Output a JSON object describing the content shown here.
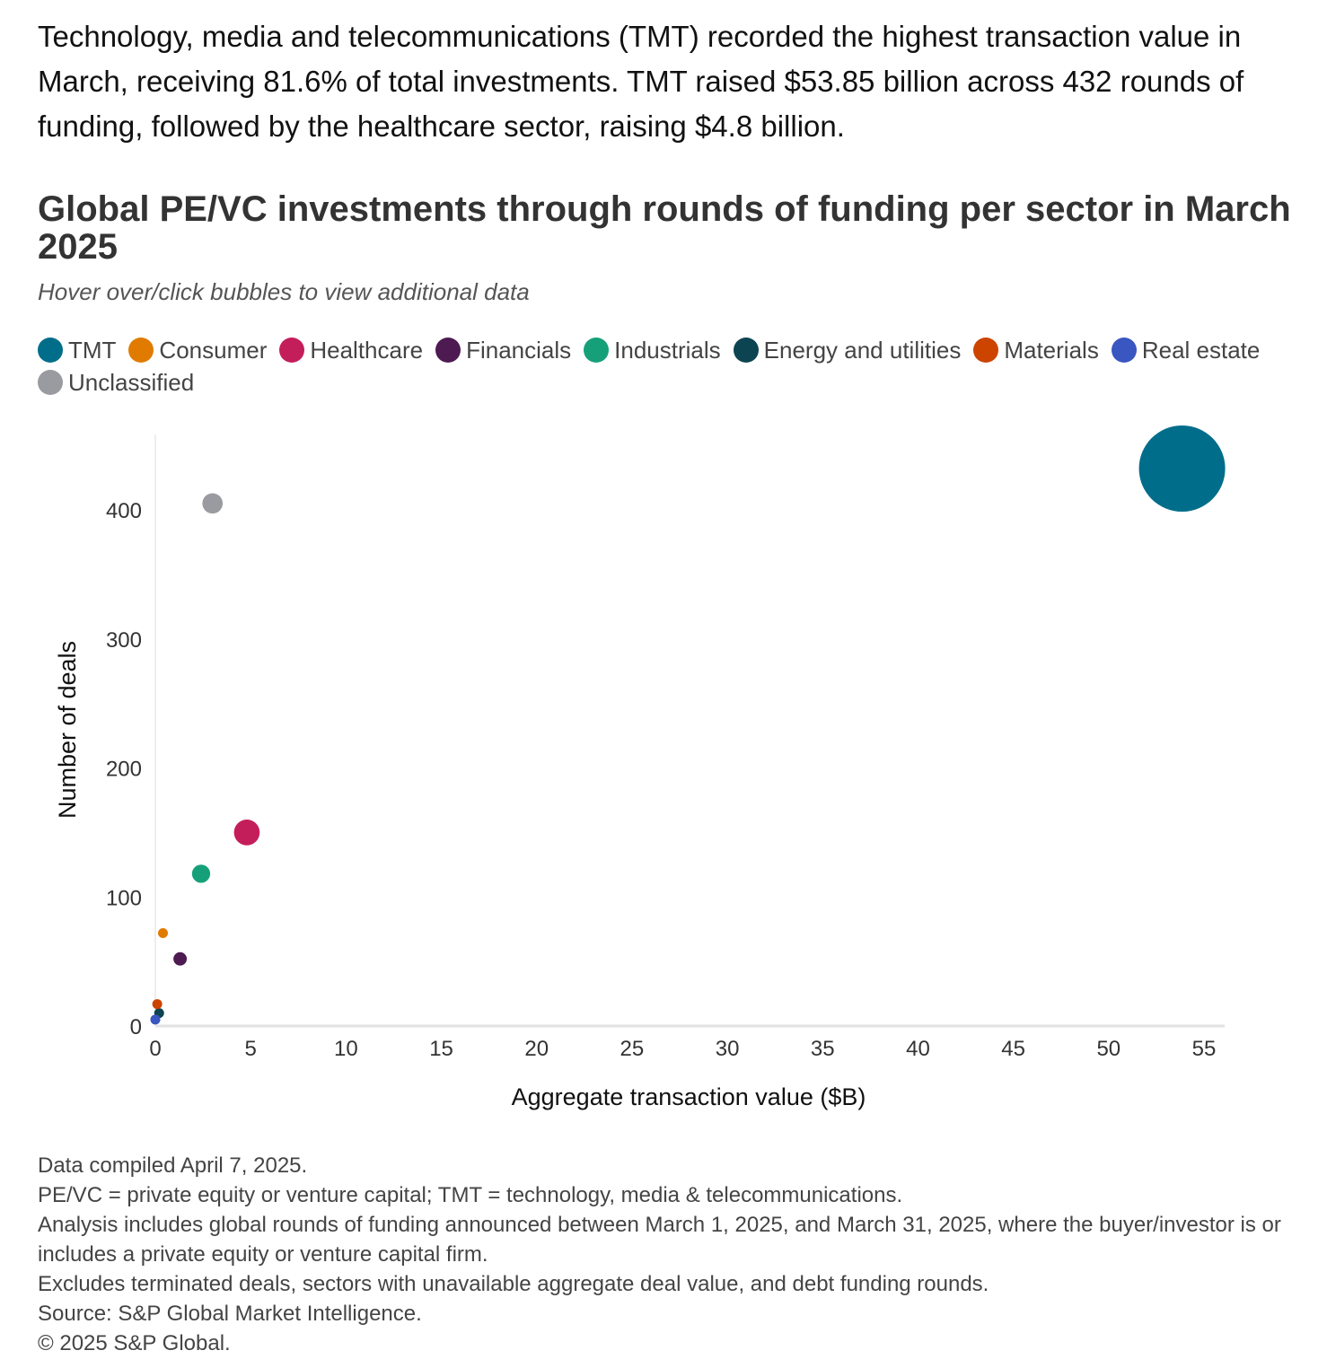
{
  "intro": "Technology, media and telecommunications (TMT) recorded the highest transaction value in March, receiving 81.6% of total investments. TMT raised $53.85 billion across 432 rounds of funding, followed by the healthcare sector, raising $4.8 billion.",
  "chart_data": {
    "type": "scatter",
    "title": "Global PE/VC investments through rounds of funding per sector in March 2025",
    "subtitle": "Hover over/click bubbles to view additional data",
    "xlabel": "Aggregate transaction value ($B)",
    "ylabel": "Number of deals",
    "xlim": [
      0,
      55
    ],
    "ylim": [
      0,
      460
    ],
    "xticks": [
      0,
      5,
      10,
      15,
      20,
      25,
      30,
      35,
      40,
      45,
      50,
      55
    ],
    "yticks": [
      0,
      100,
      200,
      300,
      400
    ],
    "legend_position": "top-left",
    "bubble_size": "aggregate transaction value",
    "series": [
      {
        "name": "TMT",
        "color": "#006D8A",
        "x": 53.85,
        "y": 432
      },
      {
        "name": "Consumer",
        "color": "#E07B00",
        "x": 0.4,
        "y": 72
      },
      {
        "name": "Healthcare",
        "color": "#C41E5A",
        "x": 4.8,
        "y": 150
      },
      {
        "name": "Financials",
        "color": "#4E1A52",
        "x": 1.3,
        "y": 52
      },
      {
        "name": "Industrials",
        "color": "#16A07A",
        "x": 2.4,
        "y": 118
      },
      {
        "name": "Energy and utilities",
        "color": "#0D4452",
        "x": 0.2,
        "y": 10
      },
      {
        "name": "Materials",
        "color": "#CC4400",
        "x": 0.1,
        "y": 17
      },
      {
        "name": "Real estate",
        "color": "#3A56C0",
        "x": 0.0,
        "y": 5
      },
      {
        "name": "Unclassified",
        "color": "#9A9BA0",
        "x": 3.0,
        "y": 405
      }
    ]
  },
  "footnotes": [
    "Data compiled April 7, 2025.",
    "PE/VC = private equity or venture capital; TMT = technology, media & telecommunications.",
    "Analysis includes global rounds of funding announced between March 1, 2025, and March 31, 2025, where the buyer/investor is or includes a private equity or venture capital firm.",
    "Excludes terminated deals, sectors with unavailable aggregate deal value, and debt funding rounds.",
    "Source: S&P Global Market Intelligence.",
    "© 2025 S&P Global."
  ]
}
